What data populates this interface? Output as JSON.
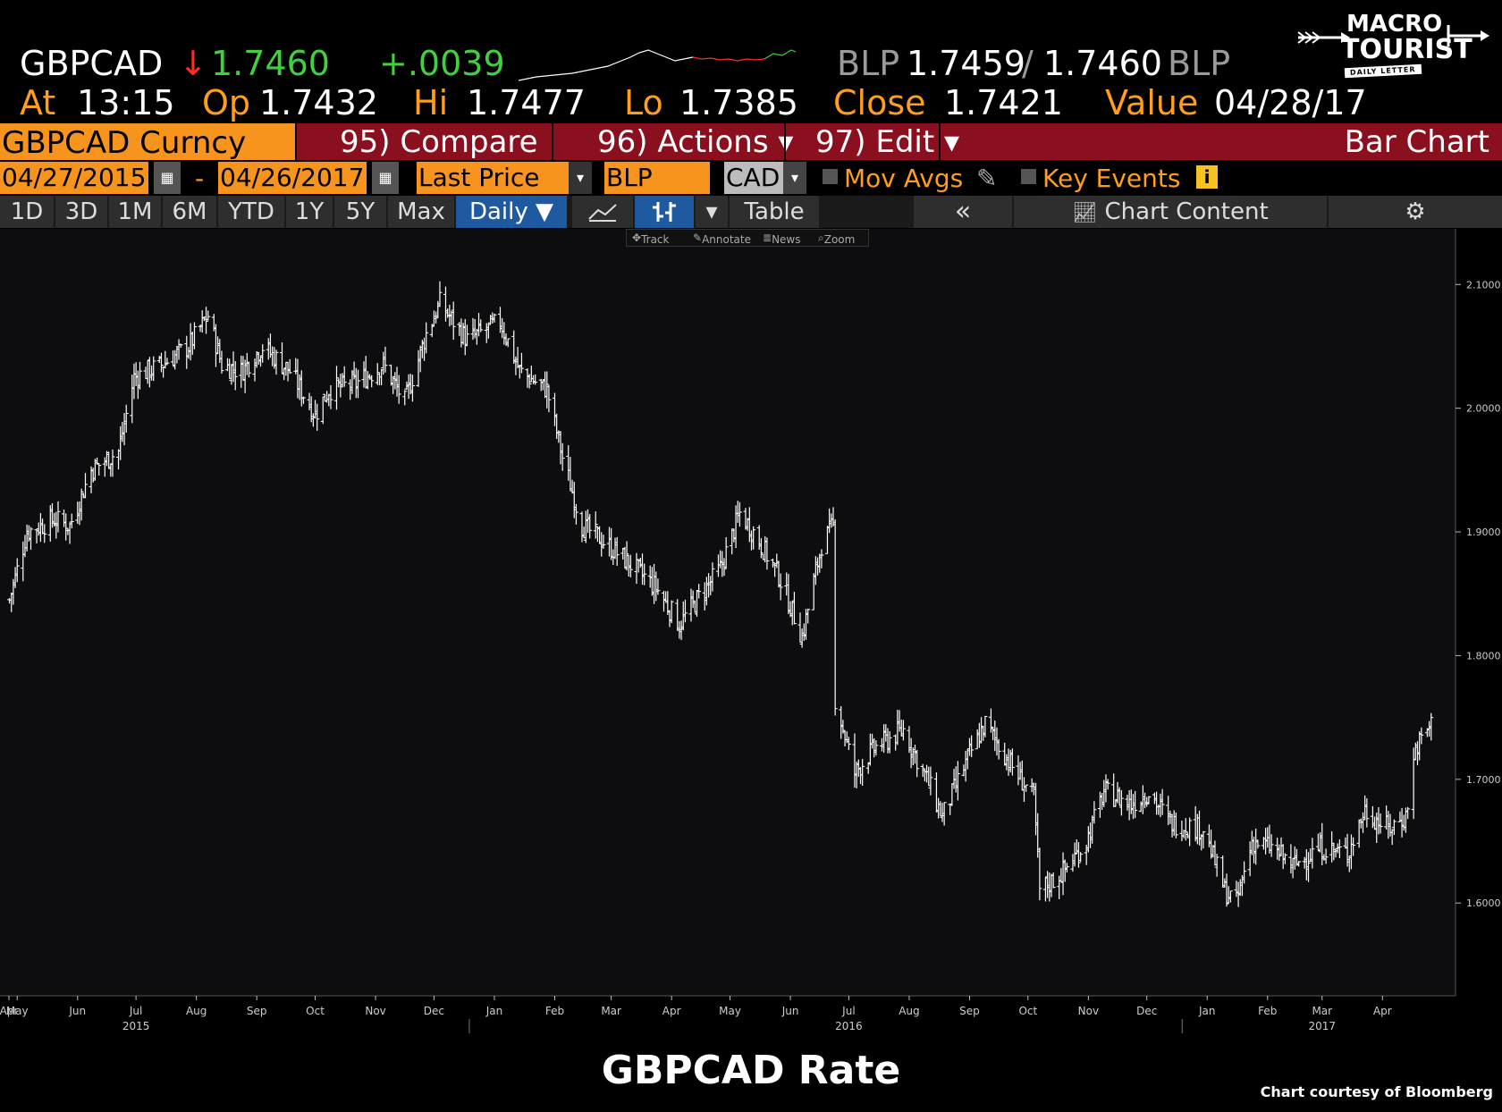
{
  "quote": {
    "ticker": "GBPCAD",
    "direction_arrow": "↓",
    "last": "1.7460",
    "change": "+.0039",
    "source_left": "BLP",
    "bid_ask": "1.7459",
    "slash": "/",
    "ask": "1.7460",
    "source_right": "BLP",
    "at_label": "At",
    "at_time": "13:15",
    "op_label": "Op",
    "op": "1.7432",
    "hi_label": "Hi",
    "hi": "1.7477",
    "lo_label": "Lo",
    "lo": "1.7385",
    "close_label": "Close",
    "close": "1.7421",
    "value_label": "Value",
    "value_date": "04/28/17"
  },
  "logo": {
    "line1": "MACRO",
    "line2": "TOURIST",
    "tag": "DAILY LETTER"
  },
  "toolbar": {
    "security": "GBPCAD Curncy",
    "compare": "95) Compare",
    "actions": "96) Actions ▾",
    "edit": "97) Edit ▾",
    "chart_type": "Bar Chart",
    "start_date": "04/27/2015",
    "dash": "-",
    "end_date": "04/26/2017",
    "field": "Last Price",
    "source": "BLP",
    "currency": "CAD",
    "mov_avgs": "Mov Avgs",
    "key_events": "Key Events",
    "info": "i"
  },
  "ranges": {
    "items": [
      "1D",
      "3D",
      "1M",
      "6M",
      "YTD",
      "1Y",
      "5Y",
      "Max"
    ],
    "period": "Daily ▼",
    "table": "Table",
    "collapse": "«",
    "chart_content": "Chart Content"
  },
  "tools": {
    "track": "Track",
    "annotate": "Annotate",
    "news": "News",
    "zoom": "Zoom"
  },
  "colors": {
    "accent_orange": "#f7941d",
    "bar_red": "#8a1020",
    "active_blue": "#1f5aa0",
    "up_green": "#3fd13f",
    "down_red": "#ff2a2a"
  },
  "chart_data": {
    "type": "ohlc-bar",
    "series_name": "GBPCAD",
    "y_ticks": [
      "2.1000",
      "2.0000",
      "1.9000",
      "1.8000",
      "1.7000",
      "1.6000"
    ],
    "ylim": [
      1.525,
      2.145
    ],
    "x_months": [
      "Apr",
      "May",
      "Jun",
      "Jul",
      "Aug",
      "Sep",
      "Oct",
      "Nov",
      "Dec",
      "Jan",
      "Feb",
      "Mar",
      "Apr",
      "May",
      "Jun",
      "Jul",
      "Aug",
      "Sep",
      "Oct",
      "Nov",
      "Dec",
      "Jan",
      "Feb",
      "Mar",
      "Apr"
    ],
    "x_years": [
      "2015",
      "2016",
      "2017"
    ],
    "anchors": [
      [
        "2015-04-27",
        1.845
      ],
      [
        "2015-05-06",
        1.9
      ],
      [
        "2015-05-20",
        1.91
      ],
      [
        "2015-05-28",
        1.905
      ],
      [
        "2015-06-08",
        1.95
      ],
      [
        "2015-06-22",
        1.965
      ],
      [
        "2015-06-30",
        2.025
      ],
      [
        "2015-07-14",
        2.035
      ],
      [
        "2015-07-28",
        2.05
      ],
      [
        "2015-08-07",
        2.075
      ],
      [
        "2015-08-14",
        2.035
      ],
      [
        "2015-08-24",
        2.03
      ],
      [
        "2015-09-04",
        2.05
      ],
      [
        "2015-09-18",
        2.03
      ],
      [
        "2015-10-01",
        1.995
      ],
      [
        "2015-10-08",
        2.015
      ],
      [
        "2015-10-22",
        2.02
      ],
      [
        "2015-11-05",
        2.035
      ],
      [
        "2015-11-16",
        2.005
      ],
      [
        "2015-11-27",
        2.06
      ],
      [
        "2015-12-04",
        2.085
      ],
      [
        "2015-12-18",
        2.055
      ],
      [
        "2016-01-04",
        2.07
      ],
      [
        "2016-01-14",
        2.03
      ],
      [
        "2016-01-28",
        2.015
      ],
      [
        "2016-02-05",
        1.96
      ],
      [
        "2016-02-15",
        1.905
      ],
      [
        "2016-02-24",
        1.895
      ],
      [
        "2016-03-10",
        1.875
      ],
      [
        "2016-03-24",
        1.855
      ],
      [
        "2016-04-05",
        1.825
      ],
      [
        "2016-04-14",
        1.845
      ],
      [
        "2016-04-26",
        1.87
      ],
      [
        "2016-05-06",
        1.915
      ],
      [
        "2016-05-13",
        1.9
      ],
      [
        "2016-05-26",
        1.865
      ],
      [
        "2016-06-07",
        1.815
      ],
      [
        "2016-06-17",
        1.89
      ],
      [
        "2016-06-23",
        1.905
      ],
      [
        "2016-06-24",
        1.765
      ],
      [
        "2016-07-04",
        1.705
      ],
      [
        "2016-07-14",
        1.725
      ],
      [
        "2016-07-29",
        1.74
      ],
      [
        "2016-08-10",
        1.7
      ],
      [
        "2016-08-18",
        1.67
      ],
      [
        "2016-09-01",
        1.72
      ],
      [
        "2016-09-09",
        1.745
      ],
      [
        "2016-09-23",
        1.71
      ],
      [
        "2016-10-04",
        1.685
      ],
      [
        "2016-10-07",
        1.61
      ],
      [
        "2016-10-19",
        1.625
      ],
      [
        "2016-10-31",
        1.65
      ],
      [
        "2016-11-09",
        1.69
      ],
      [
        "2016-11-23",
        1.68
      ],
      [
        "2016-12-02",
        1.69
      ],
      [
        "2016-12-13",
        1.665
      ],
      [
        "2016-12-30",
        1.66
      ],
      [
        "2017-01-10",
        1.61
      ],
      [
        "2017-01-16",
        1.6
      ],
      [
        "2017-01-24",
        1.65
      ],
      [
        "2017-02-03",
        1.645
      ],
      [
        "2017-02-14",
        1.63
      ],
      [
        "2017-02-28",
        1.645
      ],
      [
        "2017-03-14",
        1.64
      ],
      [
        "2017-03-23",
        1.675
      ],
      [
        "2017-04-04",
        1.66
      ],
      [
        "2017-04-13",
        1.67
      ],
      [
        "2017-04-18",
        1.725
      ],
      [
        "2017-04-26",
        1.745
      ]
    ]
  },
  "footer": {
    "title": "GBPCAD Rate",
    "credit": "Chart courtesy of Bloomberg"
  }
}
